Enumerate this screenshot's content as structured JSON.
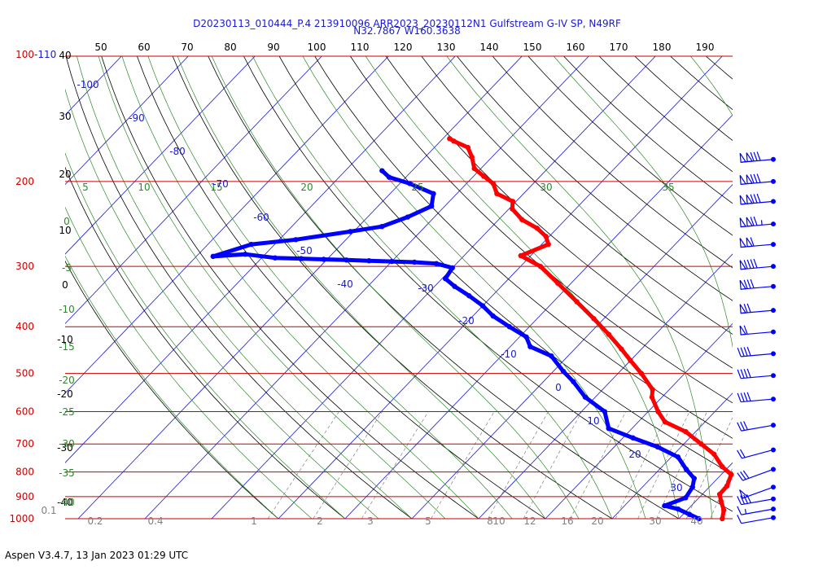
{
  "header": {
    "title_line1": "D20230113_010444_P.4 213910096 ARR2023_20230112N1 Gulfstream G-IV SP, N49RF",
    "title_line2": "N32.7867 W160.3638"
  },
  "footer": {
    "version_text": "Aspen V3.4.7, 13 Jan 2023  01:29 UTC"
  },
  "colors": {
    "isobar": "#cc0000",
    "isotherm": "#1a1ad6",
    "dry_adiabat": "#000000",
    "moist_adiabat": "#2a8a2a",
    "mixing_ratio": "#808080",
    "temperature": "#ff0000",
    "dewpoint": "#0000ff",
    "wind_barb": "#0000ff"
  },
  "chart_data": {
    "type": "line",
    "subtype": "skew-T log-P sounding",
    "title": "D20230113_010444_P.4 213910096 ARR2023_20230112N1 Gulfstream G-IV SP, N49RF",
    "y_scale": "log",
    "ylim": [
      1000,
      110
    ],
    "grid": true,
    "axes": {
      "pressure_ticks": [
        "100-110",
        "200",
        "300",
        "400",
        "500",
        "600",
        "700",
        "800",
        "900",
        "1000"
      ],
      "top_ticks": [
        "50",
        "60",
        "70",
        "80",
        "90",
        "100",
        "110",
        "120",
        "130",
        "140",
        "150",
        "160",
        "170",
        "180",
        "190"
      ],
      "left_black_ticks": [
        "40",
        "30",
        "20",
        "10",
        "0",
        "-10",
        "-20",
        "-30",
        "-40"
      ],
      "left_green_ticks": [
        "0",
        "-5",
        "-10",
        "-15",
        "-20",
        "-25",
        "-30",
        "-35",
        "-40"
      ],
      "moist_adiabat_labels": [
        "5",
        "10",
        "15",
        "20",
        "25",
        "30",
        "35"
      ],
      "isotherm_labels": [
        "-100",
        "-90",
        "-80",
        "-70",
        "-60",
        "-50",
        "-40",
        "-30",
        "-20",
        "-10",
        "0",
        "10",
        "20",
        "30"
      ],
      "mixing_ratio_labels": [
        "0.1",
        "0.2",
        "0.4",
        "1",
        "2",
        "3",
        "5",
        "8",
        "10",
        "12",
        "16",
        "20",
        "30",
        "40"
      ]
    },
    "series": [
      {
        "key": "temperature",
        "x_unit": "degC",
        "y_unit": "hPa",
        "points": [
          [
            26.5,
            1000
          ],
          [
            25.5,
            960
          ],
          [
            23.8,
            920
          ],
          [
            22.6,
            890
          ],
          [
            22.5,
            855
          ],
          [
            21.5,
            810
          ],
          [
            19.0,
            780
          ],
          [
            16.0,
            735
          ],
          [
            12.6,
            700
          ],
          [
            8.5,
            660
          ],
          [
            4.0,
            630
          ],
          [
            1.5,
            600
          ],
          [
            -1.5,
            560
          ],
          [
            -2.5,
            540
          ],
          [
            -6.5,
            500
          ],
          [
            -10.0,
            470
          ],
          [
            -13.0,
            445
          ],
          [
            -17.0,
            415
          ],
          [
            -21.5,
            385
          ],
          [
            -26.5,
            355
          ],
          [
            -32.0,
            325
          ],
          [
            -37.0,
            300
          ],
          [
            -41.5,
            285
          ],
          [
            -39.0,
            270
          ],
          [
            -40.5,
            260
          ],
          [
            -43.0,
            250
          ],
          [
            -46.5,
            240
          ],
          [
            -49.5,
            228
          ],
          [
            -50.5,
            220
          ],
          [
            -54.0,
            212
          ],
          [
            -56.0,
            202
          ],
          [
            -58.5,
            195
          ],
          [
            -61.0,
            188
          ],
          [
            -63.0,
            178
          ],
          [
            -65.0,
            170
          ],
          [
            -68.0,
            165
          ],
          [
            -69.0,
            163
          ]
        ]
      },
      {
        "key": "dewpoint",
        "x_unit": "degC",
        "y_unit": "hPa",
        "points": [
          [
            23.0,
            1000
          ],
          [
            21.0,
            980
          ],
          [
            18.5,
            955
          ],
          [
            16.0,
            940
          ],
          [
            18.0,
            905
          ],
          [
            17.5,
            860
          ],
          [
            16.5,
            825
          ],
          [
            14.0,
            790
          ],
          [
            11.0,
            745
          ],
          [
            6.5,
            710
          ],
          [
            1.5,
            680
          ],
          [
            -3.5,
            650
          ],
          [
            -6.5,
            600
          ],
          [
            -11.5,
            560
          ],
          [
            -15.5,
            520
          ],
          [
            -18.5,
            495
          ],
          [
            -22.5,
            460
          ],
          [
            -27.0,
            440
          ],
          [
            -29.0,
            420
          ],
          [
            -33.0,
            400
          ],
          [
            -37.0,
            380
          ],
          [
            -40.0,
            362
          ],
          [
            -43.5,
            345
          ],
          [
            -47.0,
            330
          ],
          [
            -49.5,
            318
          ],
          [
            -50.0,
            302
          ],
          [
            -53.0,
            296
          ],
          [
            -56.5,
            294
          ],
          [
            -60.0,
            293
          ],
          [
            -63.5,
            292
          ],
          [
            -67.0,
            291
          ],
          [
            -70.5,
            290
          ],
          [
            -74.0,
            289
          ],
          [
            -78.0,
            288
          ],
          [
            -83.0,
            283
          ],
          [
            -87.5,
            286
          ],
          [
            -83.5,
            270
          ],
          [
            -77.5,
            264
          ],
          [
            -70.5,
            254
          ],
          [
            -66.5,
            248
          ],
          [
            -64.0,
            237
          ],
          [
            -62.0,
            225
          ],
          [
            -63.5,
            212
          ],
          [
            -68.5,
            202
          ],
          [
            -72.5,
            196
          ],
          [
            -74.5,
            190
          ]
        ]
      }
    ],
    "wind_barbs": [
      {
        "pressure": 995,
        "speed_kt": 10,
        "direction_deg": 80
      },
      {
        "pressure": 955,
        "speed_kt": 15,
        "direction_deg": 80
      },
      {
        "pressure": 910,
        "speed_kt": 40,
        "direction_deg": 80
      },
      {
        "pressure": 860,
        "speed_kt": 50,
        "direction_deg": 70
      },
      {
        "pressure": 790,
        "speed_kt": 30,
        "direction_deg": 70
      },
      {
        "pressure": 720,
        "speed_kt": 20,
        "direction_deg": 75
      },
      {
        "pressure": 640,
        "speed_kt": 30,
        "direction_deg": 80
      },
      {
        "pressure": 565,
        "speed_kt": 40,
        "direction_deg": 85
      },
      {
        "pressure": 505,
        "speed_kt": 40,
        "direction_deg": 85
      },
      {
        "pressure": 455,
        "speed_kt": 40,
        "direction_deg": 85
      },
      {
        "pressure": 410,
        "speed_kt": 60,
        "direction_deg": 85
      },
      {
        "pressure": 370,
        "speed_kt": 70,
        "direction_deg": 85
      },
      {
        "pressure": 330,
        "speed_kt": 80,
        "direction_deg": 85
      },
      {
        "pressure": 300,
        "speed_kt": 90,
        "direction_deg": 85
      },
      {
        "pressure": 270,
        "speed_kt": 110,
        "direction_deg": 85
      },
      {
        "pressure": 245,
        "speed_kt": 125,
        "direction_deg": 85
      },
      {
        "pressure": 220,
        "speed_kt": 130,
        "direction_deg": 85
      },
      {
        "pressure": 200,
        "speed_kt": 130,
        "direction_deg": 85
      },
      {
        "pressure": 180,
        "speed_kt": 130,
        "direction_deg": 85
      }
    ]
  }
}
